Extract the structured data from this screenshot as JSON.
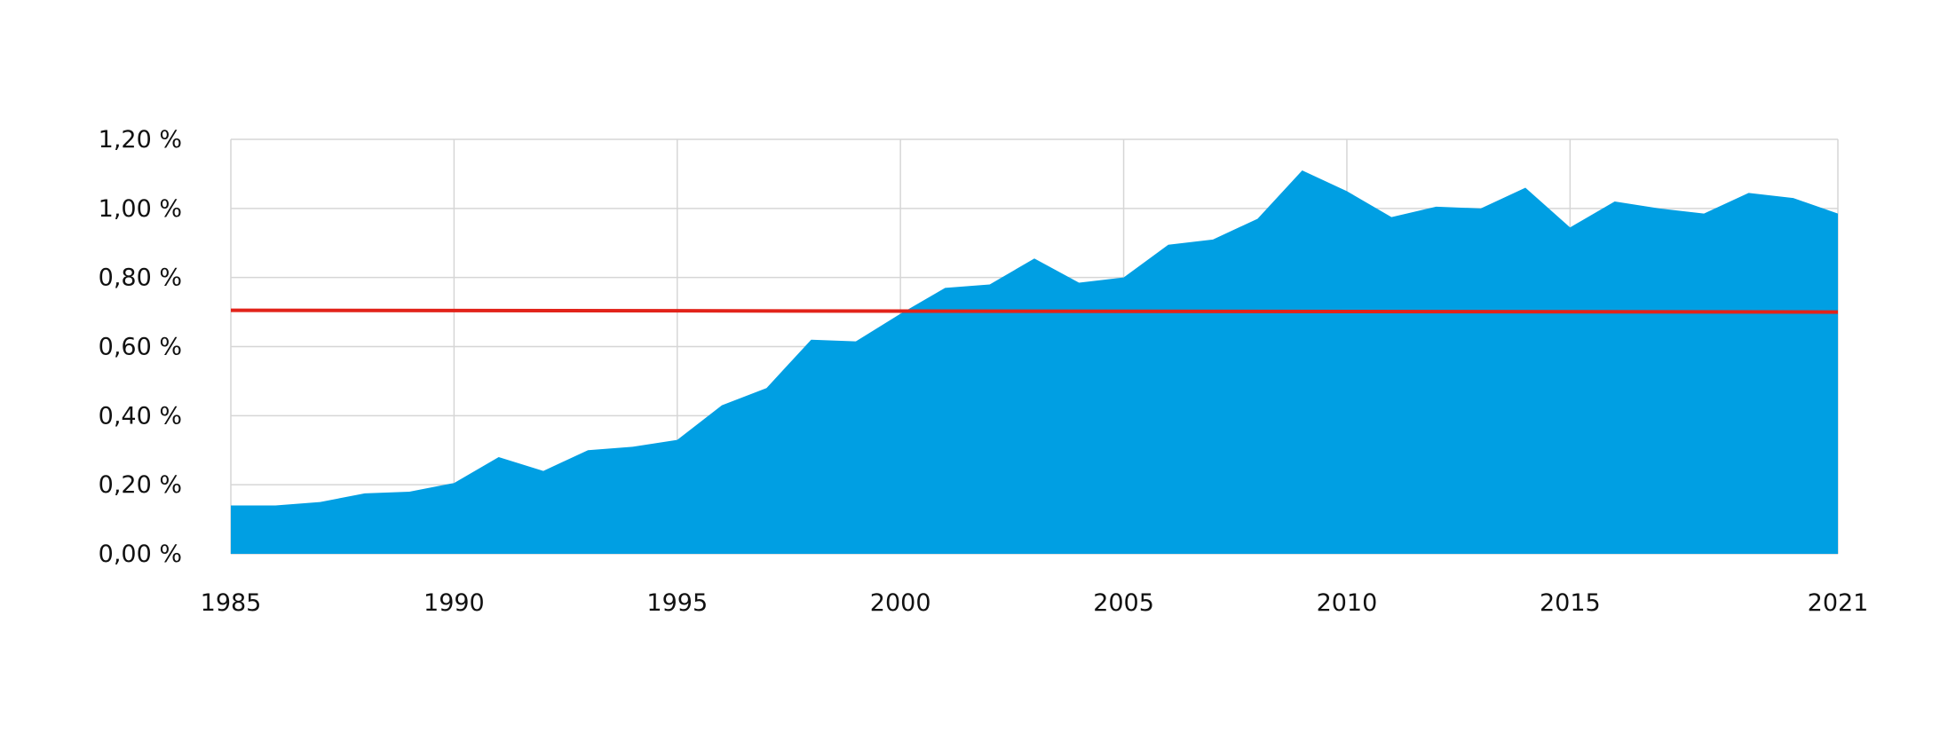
{
  "chart_data": {
    "type": "area",
    "title": "",
    "xlabel": "",
    "ylabel": "",
    "xlim": [
      1985,
      2021
    ],
    "ylim": [
      0,
      1.2
    ],
    "grid": true,
    "legend": "none",
    "x_ticks": [
      {
        "value": 1985,
        "label": "1985"
      },
      {
        "value": 1990,
        "label": "1990"
      },
      {
        "value": 1995,
        "label": "1995"
      },
      {
        "value": 2000,
        "label": "2000"
      },
      {
        "value": 2005,
        "label": "2005"
      },
      {
        "value": 2010,
        "label": "2010"
      },
      {
        "value": 2015,
        "label": "2015"
      },
      {
        "value": 2021,
        "label": "2021"
      }
    ],
    "y_ticks": [
      {
        "value": 0.0,
        "label": "0,00 %"
      },
      {
        "value": 0.2,
        "label": "0,20 %"
      },
      {
        "value": 0.4,
        "label": "0,40 %"
      },
      {
        "value": 0.6,
        "label": "0,60 %"
      },
      {
        "value": 0.8,
        "label": "0,80 %"
      },
      {
        "value": 1.0,
        "label": "1,00 %"
      },
      {
        "value": 1.2,
        "label": "1,20 %"
      }
    ],
    "series": [
      {
        "type": "area",
        "color": "#009fe3",
        "x": [
          1985,
          1986,
          1987,
          1988,
          1989,
          1990,
          1991,
          1992,
          1993,
          1994,
          1995,
          1996,
          1997,
          1998,
          1999,
          2000,
          2001,
          2002,
          2003,
          2004,
          2005,
          2006,
          2007,
          2008,
          2009,
          2010,
          2011,
          2012,
          2013,
          2014,
          2015,
          2016,
          2017,
          2018,
          2019,
          2020,
          2021
        ],
        "values": [
          0.14,
          0.14,
          0.15,
          0.175,
          0.18,
          0.205,
          0.28,
          0.24,
          0.3,
          0.31,
          0.33,
          0.43,
          0.48,
          0.62,
          0.615,
          0.695,
          0.77,
          0.78,
          0.855,
          0.785,
          0.8,
          0.895,
          0.91,
          0.97,
          1.11,
          1.05,
          0.975,
          1.005,
          1.0,
          1.06,
          0.945,
          1.02,
          1.0,
          0.985,
          1.045,
          1.03,
          0.985
        ]
      },
      {
        "type": "line",
        "color": "#e2231a",
        "x": [
          1985,
          2021
        ],
        "values": [
          0.705,
          0.7
        ]
      }
    ]
  }
}
